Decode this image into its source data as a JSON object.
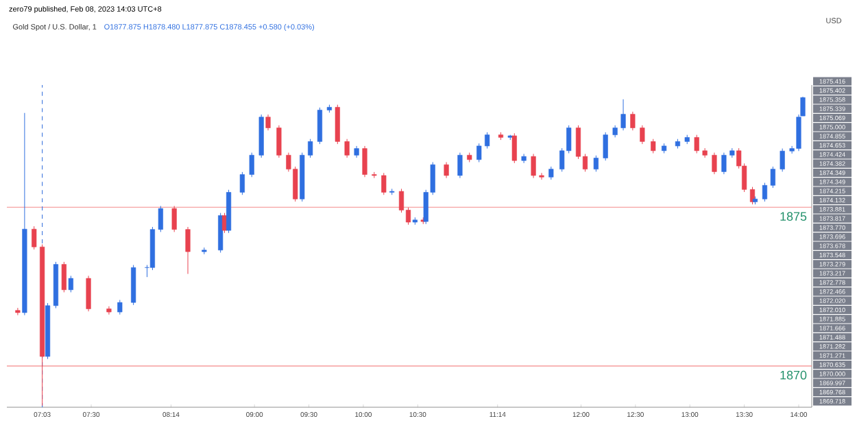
{
  "chart_data": {
    "type": "candlestick",
    "title": "Gold Spot / U.S. Dollar, 1",
    "subtitle": "O1877.875 H1878.480 L1877.875 C1878.455 +0.580 (+0.03%)",
    "annotations": [
      "zero79 published, Feb 08, 2023 14:03 UTC+8",
      "1875.416",
      "1875.402",
      "1875.358",
      "1875.339",
      "1875.069",
      "1875.000",
      "1874.855",
      "1874.653",
      "1874.424",
      "1874.382",
      "1874.349",
      "1874.349",
      "1874.215",
      "1874.132",
      "1873.881",
      "1873.817",
      "1873.770",
      "1873.696",
      "1873.678",
      "1873.548",
      "1873.279",
      "1873.217",
      "1872.778",
      "1872.466",
      "1872.020",
      "1872.010",
      "1871.885",
      "1871.666",
      "1871.488",
      "1871.282",
      "1871.271",
      "1870.635",
      "1870.000",
      "1869.997",
      "1869.768",
      "1869.718",
      "USD"
    ],
    "x": [
      6.825,
      6.888,
      6.975,
      7.05,
      7.1,
      7.175,
      7.25,
      7.313,
      7.475,
      7.663,
      7.763,
      7.888,
      8.013,
      8.063,
      8.138,
      8.263,
      8.388,
      8.538,
      8.688,
      8.725,
      8.763,
      8.888,
      8.975,
      9.063,
      9.125,
      9.225,
      9.313,
      9.375,
      9.438,
      9.513,
      9.6,
      9.688,
      9.763,
      9.85,
      9.938,
      10.013,
      10.1,
      10.188,
      10.263,
      10.35,
      10.413,
      10.475,
      10.55,
      10.575,
      10.638,
      10.763,
      10.888,
      10.975,
      11.063,
      11.138,
      11.263,
      11.35,
      11.388,
      11.475,
      11.563,
      11.638,
      11.725,
      11.825,
      11.888,
      11.975,
      12.038,
      12.138,
      12.225,
      12.313,
      12.388,
      12.475,
      12.563,
      12.663,
      12.763,
      12.888,
      12.975,
      13.063,
      13.138,
      13.225,
      13.313,
      13.388,
      13.45,
      13.5,
      13.575,
      13.6,
      13.688,
      13.763,
      13.85,
      13.938,
      14.0,
      14.038
    ],
    "ohlc": [
      [
        1871.75,
        1871.83,
        1871.6,
        1871.68
      ],
      [
        1871.68,
        1877.97,
        1871.6,
        1874.31
      ],
      [
        1874.31,
        1874.4,
        1873.67,
        1873.75
      ],
      [
        1873.75,
        1873.83,
        1868.75,
        1870.3
      ],
      [
        1870.3,
        1871.98,
        1870.22,
        1871.9
      ],
      [
        1871.9,
        1873.28,
        1871.82,
        1873.2
      ],
      [
        1873.2,
        1873.28,
        1872.32,
        1872.4
      ],
      [
        1872.4,
        1872.84,
        1872.32,
        1872.76
      ],
      [
        1872.76,
        1872.84,
        1871.72,
        1871.8
      ],
      [
        1871.8,
        1871.88,
        1871.62,
        1871.7
      ],
      [
        1871.7,
        1872.08,
        1871.62,
        1872.0
      ],
      [
        1872.0,
        1873.18,
        1871.92,
        1873.1
      ],
      [
        1873.1,
        1873.18,
        1872.8,
        1873.1
      ],
      [
        1873.1,
        1874.38,
        1873.02,
        1874.3
      ],
      [
        1874.3,
        1875.04,
        1874.22,
        1874.96
      ],
      [
        1874.96,
        1875.04,
        1874.22,
        1874.3
      ],
      [
        1874.3,
        1874.38,
        1872.9,
        1873.6
      ],
      [
        1873.6,
        1873.73,
        1873.52,
        1873.65
      ],
      [
        1873.65,
        1874.82,
        1873.57,
        1874.74
      ],
      [
        1874.74,
        1874.82,
        1874.19,
        1874.27
      ],
      [
        1874.27,
        1875.55,
        1874.19,
        1875.47
      ],
      [
        1875.47,
        1876.11,
        1875.39,
        1876.03
      ],
      [
        1876.03,
        1876.72,
        1875.95,
        1876.64
      ],
      [
        1876.64,
        1877.92,
        1876.56,
        1877.84
      ],
      [
        1877.84,
        1877.92,
        1877.42,
        1877.5
      ],
      [
        1877.5,
        1877.58,
        1876.56,
        1876.64
      ],
      [
        1876.64,
        1876.72,
        1876.12,
        1876.2
      ],
      [
        1876.2,
        1876.28,
        1875.18,
        1875.26
      ],
      [
        1875.26,
        1876.72,
        1875.18,
        1876.64
      ],
      [
        1876.64,
        1877.15,
        1876.56,
        1877.07
      ],
      [
        1877.07,
        1878.14,
        1876.99,
        1878.06
      ],
      [
        1878.06,
        1878.23,
        1877.98,
        1878.15
      ],
      [
        1878.15,
        1878.23,
        1876.99,
        1877.07
      ],
      [
        1877.07,
        1877.15,
        1876.56,
        1876.64
      ],
      [
        1876.64,
        1876.93,
        1876.56,
        1876.85
      ],
      [
        1876.85,
        1876.93,
        1875.95,
        1876.03
      ],
      [
        1876.03,
        1876.11,
        1875.92,
        1876.0
      ],
      [
        1876.0,
        1876.08,
        1875.39,
        1875.47
      ],
      [
        1875.47,
        1875.58,
        1875.39,
        1875.5
      ],
      [
        1875.5,
        1875.58,
        1874.83,
        1874.91
      ],
      [
        1874.91,
        1874.99,
        1874.45,
        1874.53
      ],
      [
        1874.53,
        1874.68,
        1874.45,
        1874.6
      ],
      [
        1874.6,
        1874.68,
        1874.47,
        1874.55
      ],
      [
        1874.55,
        1875.55,
        1874.47,
        1875.47
      ],
      [
        1875.47,
        1876.42,
        1875.39,
        1876.34
      ],
      [
        1876.34,
        1876.42,
        1875.92,
        1876.0
      ],
      [
        1876.0,
        1876.72,
        1875.92,
        1876.64
      ],
      [
        1876.64,
        1876.72,
        1876.42,
        1876.5
      ],
      [
        1876.5,
        1877.01,
        1876.42,
        1876.93
      ],
      [
        1876.93,
        1877.36,
        1876.85,
        1877.28
      ],
      [
        1877.28,
        1877.36,
        1877.12,
        1877.2
      ],
      [
        1877.2,
        1877.28,
        1877.12,
        1877.25
      ],
      [
        1877.25,
        1877.33,
        1876.39,
        1876.47
      ],
      [
        1876.47,
        1876.68,
        1876.39,
        1876.6
      ],
      [
        1876.6,
        1876.68,
        1875.92,
        1876.0
      ],
      [
        1876.0,
        1876.08,
        1875.87,
        1875.95
      ],
      [
        1875.95,
        1876.28,
        1875.87,
        1876.2
      ],
      [
        1876.2,
        1876.86,
        1876.12,
        1876.78
      ],
      [
        1876.78,
        1877.58,
        1876.7,
        1877.5
      ],
      [
        1877.5,
        1877.58,
        1876.52,
        1876.6
      ],
      [
        1876.6,
        1876.68,
        1876.12,
        1876.2
      ],
      [
        1876.2,
        1876.63,
        1876.12,
        1876.55
      ],
      [
        1876.55,
        1877.36,
        1876.47,
        1877.28
      ],
      [
        1877.28,
        1877.58,
        1877.2,
        1877.5
      ],
      [
        1877.5,
        1878.4,
        1877.42,
        1877.93
      ],
      [
        1877.93,
        1878.01,
        1877.42,
        1877.5
      ],
      [
        1877.5,
        1877.58,
        1876.99,
        1877.07
      ],
      [
        1877.07,
        1877.15,
        1876.7,
        1876.78
      ],
      [
        1876.78,
        1877.01,
        1876.7,
        1876.93
      ],
      [
        1876.93,
        1877.15,
        1876.85,
        1877.07
      ],
      [
        1877.07,
        1877.28,
        1876.99,
        1877.2
      ],
      [
        1877.2,
        1877.28,
        1876.7,
        1876.78
      ],
      [
        1876.78,
        1876.86,
        1876.56,
        1876.64
      ],
      [
        1876.64,
        1876.72,
        1876.04,
        1876.12
      ],
      [
        1876.12,
        1876.72,
        1876.04,
        1876.64
      ],
      [
        1876.64,
        1876.86,
        1876.56,
        1876.78
      ],
      [
        1876.78,
        1876.86,
        1876.22,
        1876.3
      ],
      [
        1876.3,
        1876.38,
        1875.48,
        1875.56
      ],
      [
        1875.56,
        1875.64,
        1875.09,
        1875.17
      ],
      [
        1875.17,
        1875.34,
        1875.09,
        1875.26
      ],
      [
        1875.26,
        1875.77,
        1875.18,
        1875.69
      ],
      [
        1875.69,
        1876.28,
        1875.61,
        1876.2
      ],
      [
        1876.2,
        1876.85,
        1876.12,
        1876.77
      ],
      [
        1876.77,
        1876.93,
        1876.69,
        1876.85
      ],
      [
        1876.85,
        1877.92,
        1876.77,
        1877.84
      ],
      [
        1877.875,
        1878.48,
        1877.875,
        1878.455
      ]
    ],
    "xlim": [
      6.725,
      14.12
    ],
    "ylim": [
      1868.7,
      1878.85
    ],
    "xticks": [
      {
        "value": 7.05,
        "label": "07:03"
      },
      {
        "value": 7.5,
        "label": "07:30"
      },
      {
        "value": 8.2333,
        "label": "08:14"
      },
      {
        "value": 9,
        "label": "09:00"
      },
      {
        "value": 9.5,
        "label": "09:30"
      },
      {
        "value": 10,
        "label": "10:00"
      },
      {
        "value": 10.5,
        "label": "10:30"
      },
      {
        "value": 11.2333,
        "label": "11:14"
      },
      {
        "value": 12,
        "label": "12:00"
      },
      {
        "value": 12.5,
        "label": "12:30"
      },
      {
        "value": 13,
        "label": "13:00"
      },
      {
        "value": 13.5,
        "label": "13:30"
      },
      {
        "value": 14,
        "label": "14:00"
      }
    ],
    "tick_labels": "x",
    "ref_lines": [
      {
        "axis": "y",
        "value": 1875,
        "label": "1875",
        "color": "#f48a8a"
      },
      {
        "axis": "y",
        "value": 1870,
        "label": "1870",
        "color": "#f48a8a"
      },
      {
        "axis": "x",
        "value": 7.05,
        "color": "#4a7fe0",
        "line_style": "dashed"
      }
    ]
  }
}
